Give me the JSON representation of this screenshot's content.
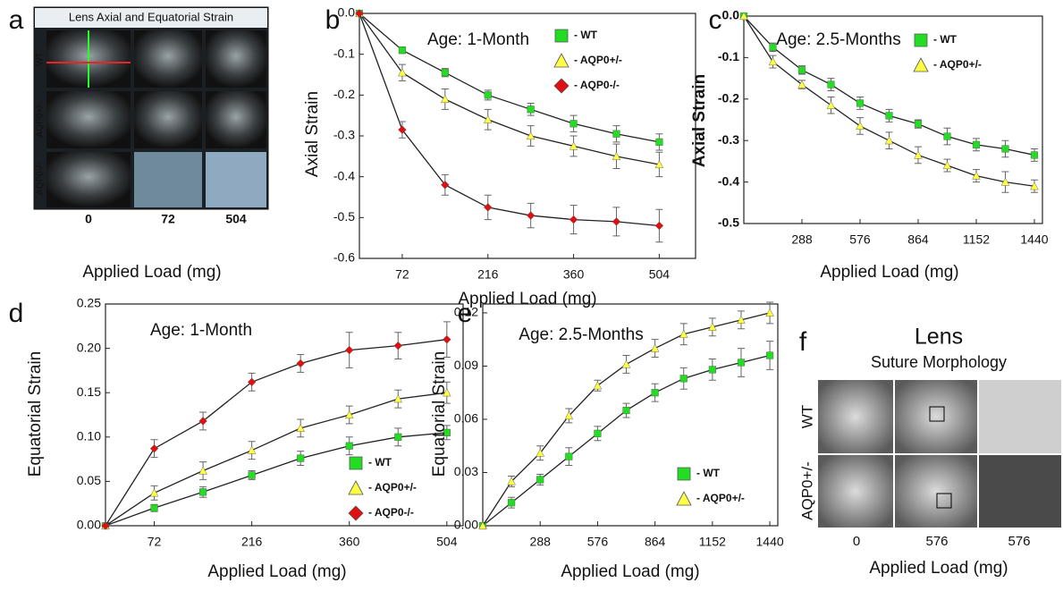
{
  "chart_data": [
    {
      "type": "line",
      "panel": "b",
      "annotation": "Age: 1-Month",
      "x_label": "Applied Load (mg)",
      "y_label": "Axial Strain",
      "x": [
        0,
        72,
        144,
        216,
        288,
        360,
        432,
        504
      ],
      "xlim": [
        0,
        565
      ],
      "xticks": [
        72,
        216,
        360,
        504
      ],
      "ylim": [
        -0.6,
        0
      ],
      "yticks": [
        {
          "value": 0,
          "label": "0.0"
        },
        -0.1,
        -0.2,
        -0.3,
        -0.4,
        -0.5,
        -0.6
      ],
      "series": [
        {
          "name": "- WT",
          "color": "#22dd22",
          "marker": "square",
          "values": [
            0,
            -0.09,
            -0.145,
            -0.2,
            -0.235,
            -0.27,
            -0.295,
            -0.315
          ],
          "errors": [
            0,
            0.008,
            0.01,
            0.012,
            0.015,
            0.02,
            0.02,
            0.02
          ]
        },
        {
          "name": "- AQP0+/-",
          "color": "#ffff44",
          "marker": "triangle",
          "values": [
            0,
            -0.145,
            -0.21,
            -0.26,
            -0.3,
            -0.325,
            -0.35,
            -0.37
          ],
          "errors": [
            0,
            0.02,
            0.025,
            0.025,
            0.025,
            0.025,
            0.03,
            0.03
          ]
        },
        {
          "name": "- AQP0-/-",
          "color": "#e01010",
          "marker": "diamond",
          "values": [
            0,
            -0.285,
            -0.42,
            -0.475,
            -0.495,
            -0.505,
            -0.51,
            -0.52
          ],
          "errors": [
            0,
            0.02,
            0.025,
            0.03,
            0.03,
            0.035,
            0.035,
            0.04
          ]
        }
      ]
    },
    {
      "type": "line",
      "panel": "c",
      "annotation": "Age: 2.5-Months",
      "x_label": "Applied Load (mg)",
      "y_label": "Axial Strain",
      "x": [
        0,
        144,
        288,
        432,
        576,
        720,
        864,
        1008,
        1152,
        1296,
        1440
      ],
      "xlim": [
        0,
        1480
      ],
      "xticks": [
        288,
        576,
        864,
        1152,
        1440
      ],
      "ylim": [
        -0.5,
        0
      ],
      "yticks": [
        {
          "value": 0,
          "label": "0.0"
        },
        -0.1,
        -0.2,
        -0.3,
        -0.4,
        -0.5
      ],
      "series": [
        {
          "name": "- WT",
          "color": "#22dd22",
          "marker": "square",
          "values": [
            0,
            -0.075,
            -0.13,
            -0.165,
            -0.21,
            -0.24,
            -0.26,
            -0.29,
            -0.31,
            -0.32,
            -0.335
          ],
          "errors": [
            0,
            0.01,
            0.01,
            0.015,
            0.015,
            0.015,
            0.01,
            0.02,
            0.015,
            0.02,
            0.015
          ]
        },
        {
          "name": "- AQP0+/-",
          "color": "#ffff44",
          "marker": "triangle",
          "values": [
            0,
            -0.11,
            -0.165,
            -0.215,
            -0.265,
            -0.3,
            -0.335,
            -0.36,
            -0.385,
            -0.4,
            -0.41
          ],
          "errors": [
            0,
            0.015,
            0.01,
            0.02,
            0.02,
            0.02,
            0.02,
            0.015,
            0.015,
            0.025,
            0.015
          ]
        }
      ]
    },
    {
      "type": "line",
      "panel": "d",
      "annotation": "Age: 1-Month",
      "x_label": "Applied Load (mg)",
      "y_label": "Equatorial Strain",
      "x": [
        0,
        72,
        144,
        216,
        288,
        360,
        432,
        504
      ],
      "xlim": [
        0,
        528
      ],
      "xticks": [
        72,
        216,
        360,
        504
      ],
      "ylim": [
        0,
        0.25
      ],
      "yticks": [
        {
          "value": 0,
          "label": "0.00"
        },
        0.05,
        {
          "value": 0.1,
          "label": "0.10"
        },
        0.15,
        {
          "value": 0.2,
          "label": "0.20"
        },
        0.25
      ],
      "series": [
        {
          "name": "- WT",
          "color": "#22dd22",
          "marker": "square",
          "values": [
            0,
            0.02,
            0.038,
            0.057,
            0.076,
            0.09,
            0.1,
            0.105
          ],
          "errors": [
            0,
            0.004,
            0.006,
            0.005,
            0.008,
            0.01,
            0.01,
            0.008
          ]
        },
        {
          "name": "- AQP0+/-",
          "color": "#ffff44",
          "marker": "triangle",
          "values": [
            0,
            0.037,
            0.062,
            0.085,
            0.11,
            0.125,
            0.143,
            0.15
          ],
          "errors": [
            0,
            0.008,
            0.01,
            0.01,
            0.01,
            0.01,
            0.01,
            0.012
          ]
        },
        {
          "name": "- AQP0-/-",
          "color": "#e01010",
          "marker": "diamond",
          "values": [
            0,
            0.087,
            0.118,
            0.162,
            0.183,
            0.198,
            0.203,
            0.21
          ],
          "errors": [
            0,
            0.01,
            0.01,
            0.01,
            0.01,
            0.02,
            0.015,
            0.02
          ]
        }
      ]
    },
    {
      "type": "line",
      "panel": "e",
      "annotation": "Age: 2.5-Months",
      "x_label": "Applied Load (mg)",
      "y_label": "Equatorial Strain",
      "x": [
        0,
        144,
        288,
        432,
        576,
        720,
        864,
        1008,
        1152,
        1296,
        1440
      ],
      "xlim": [
        0,
        1480
      ],
      "xticks": [
        288,
        576,
        864,
        1152,
        1440
      ],
      "ylim": [
        0,
        0.125
      ],
      "yticks": [
        {
          "value": 0,
          "label": "0.00"
        },
        0.03,
        0.06,
        0.09,
        0.12
      ],
      "series": [
        {
          "name": "- WT",
          "color": "#22dd22",
          "marker": "square",
          "values": [
            0,
            0.013,
            0.026,
            0.039,
            0.052,
            0.065,
            0.075,
            0.083,
            0.088,
            0.092,
            0.096
          ],
          "errors": [
            0,
            0.003,
            0.003,
            0.005,
            0.004,
            0.004,
            0.005,
            0.006,
            0.006,
            0.008,
            0.008
          ]
        },
        {
          "name": "- AQP0+/-",
          "color": "#ffff44",
          "marker": "triangle",
          "values": [
            0,
            0.025,
            0.041,
            0.062,
            0.079,
            0.091,
            0.1,
            0.108,
            0.112,
            0.116,
            0.12
          ],
          "errors": [
            0,
            0.003,
            0.004,
            0.004,
            0.003,
            0.005,
            0.005,
            0.006,
            0.005,
            0.005,
            0.006
          ]
        }
      ]
    }
  ],
  "panel_a": {
    "panel": "a",
    "title": "Lens Axial and Equatorial Strain",
    "rows": [
      "WT",
      "AQP0+/-",
      "AQP0-/-"
    ],
    "columns": [
      "0",
      "72",
      "504"
    ],
    "x_label": "Applied Load (mg)"
  },
  "panel_f": {
    "panel": "f",
    "title": "Lens",
    "subtitle": "Suture Morphology",
    "rows": [
      "WT",
      "AQP0+/-"
    ],
    "columns": [
      "0",
      "576",
      "576"
    ],
    "x_label": "Applied Load (mg)"
  }
}
